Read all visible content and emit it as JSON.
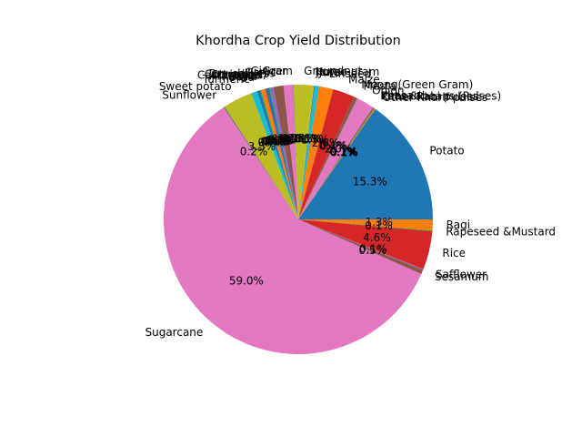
{
  "chart_data": {
    "type": "pie",
    "title": "Khordha Crop Yield Distribution",
    "start_angle_deg": 0,
    "direction": "counterclockwise",
    "autopct_format": "{:.1f}%",
    "slices": [
      {
        "label": "Potato",
        "value": 15.2,
        "color": "#1f77b4"
      },
      {
        "label": "Other Kharif pulses",
        "value": 0.1,
        "color": "#ff7f0e"
      },
      {
        "label": "Other Rabi pulses",
        "value": 0.1,
        "color": "#2ca02c"
      },
      {
        "label": "Peas & beans (Pulses)",
        "value": 0.1,
        "color": "#d62728"
      },
      {
        "label": "Khesari",
        "value": 0.1,
        "color": "#9467bd"
      },
      {
        "label": "Onion",
        "value": 2.0,
        "color": "#e377c2"
      },
      {
        "label": "Mesta",
        "value": 0.1,
        "color": "#7f7f7f"
      },
      {
        "label": "Moong(Green Gram)",
        "value": 0.4,
        "color": "#8c564b"
      },
      {
        "label": "Maize",
        "value": 2.6,
        "color": "#d62728"
      },
      {
        "label": "Linseed",
        "value": 1.7,
        "color": "#ff7f0e"
      },
      {
        "label": "Jute",
        "value": 0.5,
        "color": "#17becf"
      },
      {
        "label": "Jowar",
        "value": 0.1,
        "color": "#1f77b4"
      },
      {
        "label": "Horse-gram",
        "value": 0.1,
        "color": "#bcbd22"
      },
      {
        "label": "Groundnut",
        "value": 2.3,
        "color": "#bcbd22"
      },
      {
        "label": "Gram",
        "value": 0.1,
        "color": "#7f7f7f"
      },
      {
        "label": "Ginger",
        "value": 1.1,
        "color": "#e377c2"
      },
      {
        "label": "Garlic",
        "value": 1.2,
        "color": "#8c564b"
      },
      {
        "label": "Dry chillies",
        "value": 0.4,
        "color": "#9467bd"
      },
      {
        "label": "Cotton(lint)",
        "value": 0.1,
        "color": "#2ca02c"
      },
      {
        "label": "Coriander",
        "value": 0.4,
        "color": "#1f77b4"
      },
      {
        "label": "Castor seed",
        "value": 0.1,
        "color": "#d62728"
      },
      {
        "label": "Arhar/Tur",
        "value": 0.5,
        "color": "#ff7f0e"
      },
      {
        "label": "Bajra",
        "value": 0.1,
        "color": "#2ca02c"
      },
      {
        "label": "Urad",
        "value": 0.4,
        "color": "#1f77b4"
      },
      {
        "label": "Turmeric",
        "value": 0.7,
        "color": "#17becf"
      },
      {
        "label": "Sweet potato",
        "value": 3.5,
        "color": "#bcbd22"
      },
      {
        "label": "Sunflower",
        "value": 0.2,
        "color": "#7f7f7f"
      },
      {
        "label": "Sugarcane",
        "value": 58.6,
        "color": "#e377c2"
      },
      {
        "label": "Sesamum",
        "value": 0.5,
        "color": "#8c564b"
      },
      {
        "label": "Safflower",
        "value": 0.1,
        "color": "#9467bd"
      },
      {
        "label": "Rice",
        "value": 4.6,
        "color": "#d62728"
      },
      {
        "label": "Rapeseed &Mustard",
        "value": 0.1,
        "color": "#2ca02c"
      },
      {
        "label": "Ragi",
        "value": 1.3,
        "color": "#ff7f0e"
      }
    ]
  }
}
